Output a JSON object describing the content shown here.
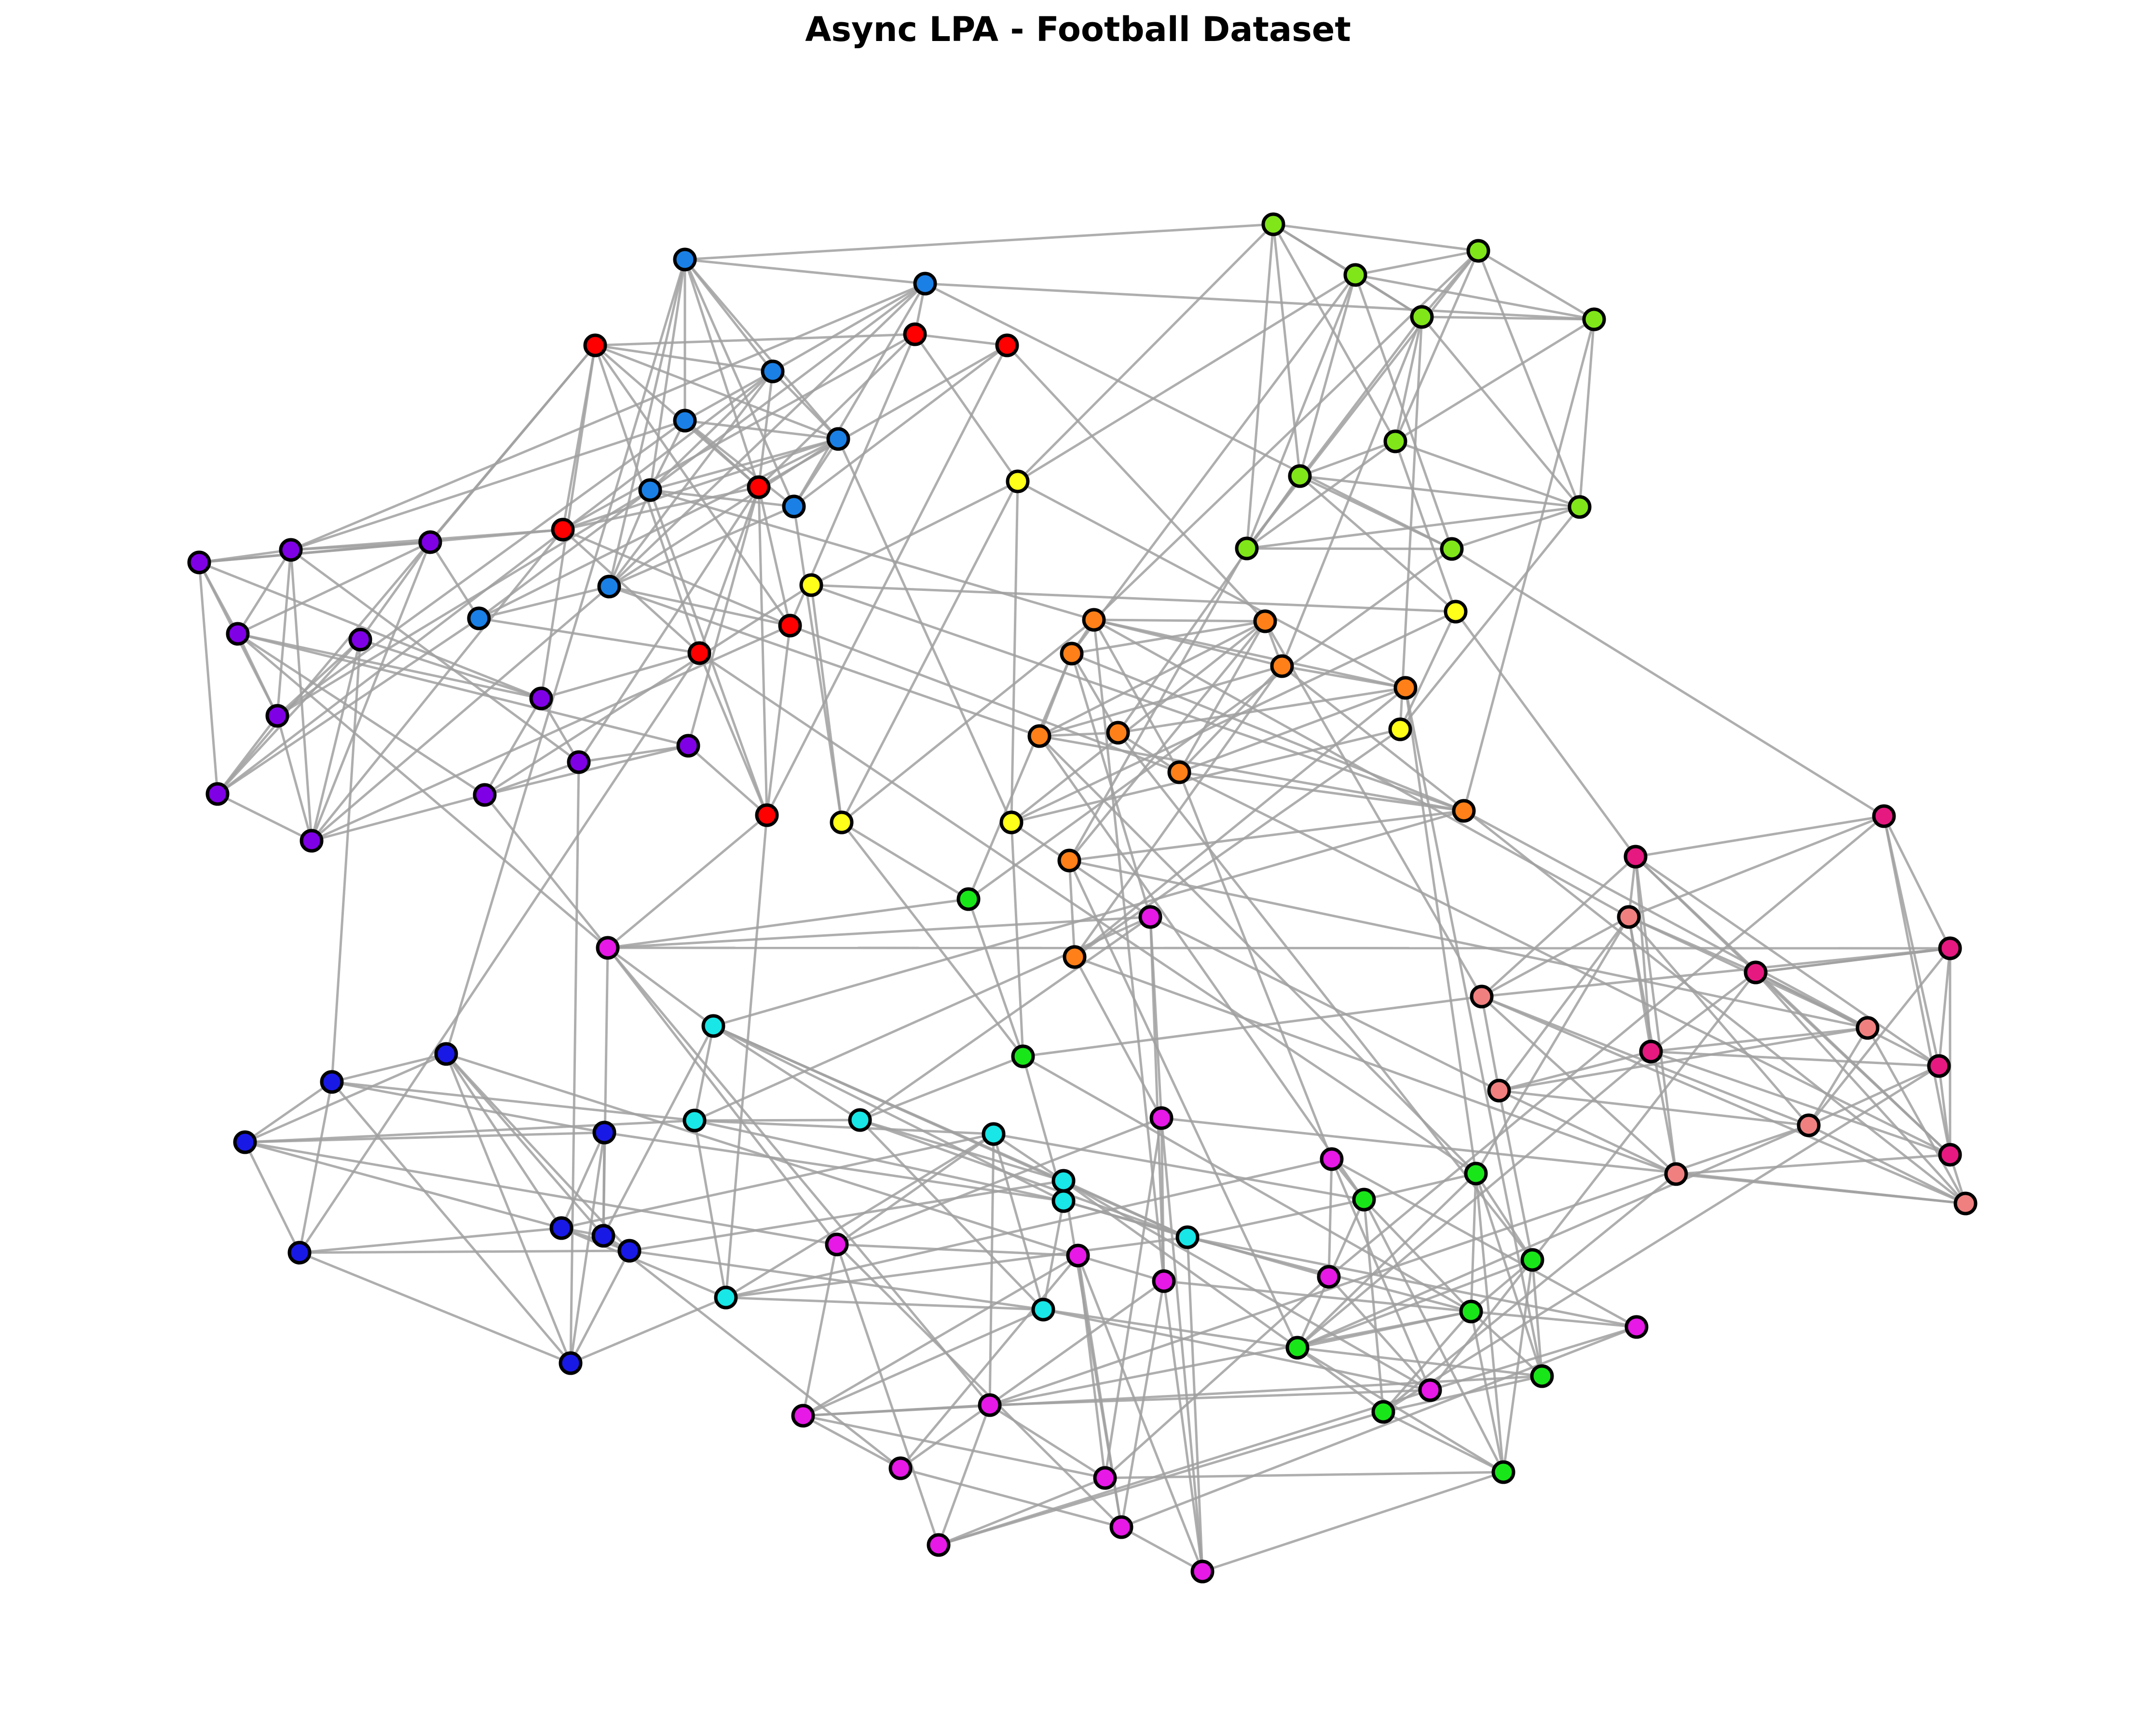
{
  "title": "Async LPA - Football Dataset",
  "colors": {
    "edge": "#a0a0a0",
    "node_stroke": "#000000",
    "communities": {
      "blue": "#1a80e6",
      "red": "#ff0000",
      "lime": "#80e619",
      "yellow": "#ffff19",
      "violet": "#8000e6",
      "orange": "#ff8019",
      "green": "#19e619",
      "magenta": "#e619e6",
      "crimson": "#e61980",
      "salmon": "#f08080",
      "cyan": "#19e6e6",
      "navy": "#1919e6"
    }
  }
}
